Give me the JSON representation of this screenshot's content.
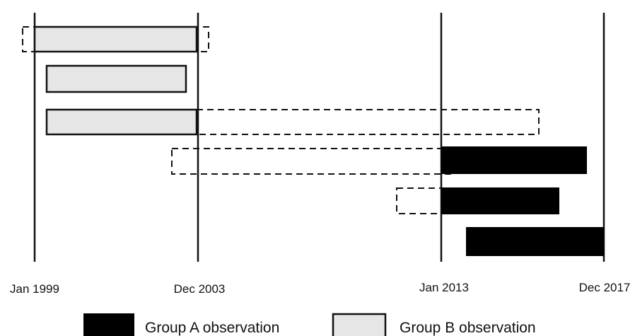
{
  "axis": {
    "ticks": [
      "Jan 1999",
      "Dec 2003",
      "Jan 2013",
      "Dec 2017"
    ]
  },
  "legend": {
    "items": [
      "Group A observation",
      "Group B observation"
    ]
  }
}
